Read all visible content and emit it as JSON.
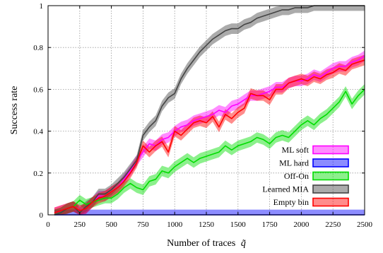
{
  "chart_data": {
    "type": "line",
    "xlabel": "Number of traces",
    "xlabel_symbol": "q̃",
    "ylabel": "Success rate",
    "xlim": [
      0,
      2500
    ],
    "ylim": [
      0,
      1
    ],
    "xticks": [
      "0",
      "250",
      "500",
      "750",
      "1000",
      "1250",
      "1500",
      "1750",
      "2000",
      "2250",
      "2500"
    ],
    "yticks": [
      "0",
      "0.2",
      "0.4",
      "0.6",
      "0.8",
      "1"
    ],
    "grid": true,
    "legend_position": "bottom-right",
    "series": [
      {
        "name": "ML soft",
        "color": "#ff00ff",
        "x": [
          50,
          100,
          150,
          200,
          250,
          300,
          350,
          400,
          450,
          500,
          550,
          600,
          650,
          700,
          750,
          800,
          850,
          900,
          950,
          1000,
          1050,
          1100,
          1150,
          1200,
          1250,
          1300,
          1350,
          1400,
          1450,
          1500,
          1550,
          1600,
          1650,
          1700,
          1750,
          1800,
          1850,
          1900,
          1950,
          2000,
          2050,
          2100,
          2150,
          2200,
          2250,
          2300,
          2350,
          2400,
          2450,
          2500
        ],
        "y": [
          0.01,
          0.02,
          0.03,
          0.04,
          0.02,
          0.03,
          0.06,
          0.09,
          0.09,
          0.11,
          0.13,
          0.17,
          0.21,
          0.26,
          0.3,
          0.34,
          0.33,
          0.36,
          0.37,
          0.4,
          0.42,
          0.43,
          0.45,
          0.46,
          0.47,
          0.48,
          0.5,
          0.49,
          0.52,
          0.53,
          0.55,
          0.57,
          0.57,
          0.58,
          0.59,
          0.61,
          0.61,
          0.63,
          0.64,
          0.64,
          0.65,
          0.67,
          0.66,
          0.68,
          0.7,
          0.71,
          0.71,
          0.73,
          0.74,
          0.76
        ]
      },
      {
        "name": "ML hard",
        "color": "#0000ff",
        "x": [
          50,
          100,
          150,
          200,
          250,
          300,
          350,
          400,
          450,
          500,
          550,
          600,
          650,
          700,
          750,
          800,
          850,
          900,
          950,
          1000,
          1050,
          1100,
          1150,
          1200,
          1250,
          1300,
          1350,
          1400,
          1450,
          1500,
          1550,
          1600,
          1650,
          1700,
          1750,
          1800,
          1850,
          1900,
          1950,
          2000,
          2050,
          2100,
          2150,
          2200,
          2250,
          2300,
          2350,
          2400,
          2450,
          2500
        ],
        "y": [
          0,
          0,
          0,
          0,
          0,
          0,
          0,
          0,
          0,
          0,
          0,
          0,
          0,
          0,
          0,
          0,
          0,
          0,
          0,
          0,
          0,
          0,
          0,
          0,
          0,
          0,
          0,
          0,
          0,
          0,
          0,
          0,
          0,
          0,
          0,
          0,
          0,
          0,
          0,
          0,
          0,
          0,
          0,
          0,
          0,
          0,
          0,
          0,
          0,
          0
        ]
      },
      {
        "name": "Off-On",
        "color": "#00dd00",
        "x": [
          50,
          100,
          150,
          200,
          250,
          300,
          350,
          400,
          450,
          500,
          550,
          600,
          650,
          700,
          750,
          800,
          850,
          900,
          950,
          1000,
          1050,
          1100,
          1150,
          1200,
          1250,
          1300,
          1350,
          1400,
          1450,
          1500,
          1550,
          1600,
          1650,
          1700,
          1750,
          1800,
          1850,
          1900,
          1950,
          2000,
          2050,
          2100,
          2150,
          2200,
          2250,
          2300,
          2350,
          2400,
          2450,
          2500
        ],
        "y": [
          0.0,
          0.01,
          0.03,
          0.04,
          0.07,
          0.05,
          0.06,
          0.07,
          0.08,
          0.08,
          0.1,
          0.13,
          0.15,
          0.13,
          0.12,
          0.16,
          0.17,
          0.21,
          0.2,
          0.23,
          0.25,
          0.27,
          0.25,
          0.27,
          0.28,
          0.29,
          0.3,
          0.33,
          0.31,
          0.33,
          0.34,
          0.35,
          0.37,
          0.36,
          0.34,
          0.37,
          0.38,
          0.37,
          0.4,
          0.43,
          0.45,
          0.43,
          0.46,
          0.48,
          0.51,
          0.54,
          0.59,
          0.53,
          0.57,
          0.6
        ]
      },
      {
        "name": "Learned MIA",
        "color": "#444444",
        "x": [
          50,
          100,
          150,
          200,
          250,
          300,
          350,
          400,
          450,
          500,
          550,
          600,
          650,
          700,
          750,
          800,
          850,
          900,
          950,
          1000,
          1050,
          1100,
          1150,
          1200,
          1250,
          1300,
          1350,
          1400,
          1450,
          1500,
          1550,
          1600,
          1650,
          1700,
          1750,
          1800,
          1850,
          1900,
          1950,
          2000,
          2050,
          2100,
          2150,
          2200,
          2250,
          2300,
          2350,
          2400,
          2450,
          2500
        ],
        "y": [
          0.0,
          0.01,
          0.03,
          0.04,
          0.01,
          0.04,
          0.06,
          0.1,
          0.1,
          0.12,
          0.15,
          0.18,
          0.22,
          0.26,
          0.38,
          0.42,
          0.45,
          0.52,
          0.56,
          0.58,
          0.65,
          0.7,
          0.74,
          0.78,
          0.81,
          0.84,
          0.86,
          0.88,
          0.89,
          0.89,
          0.91,
          0.92,
          0.94,
          0.95,
          0.96,
          0.97,
          0.98,
          0.98,
          0.99,
          0.99,
          0.99,
          1.0,
          1.0,
          1.0,
          1.0,
          1.0,
          1.0,
          1.0,
          1.0,
          1.0
        ]
      },
      {
        "name": "Empty bin",
        "color": "#ff0000",
        "x": [
          50,
          100,
          150,
          200,
          250,
          300,
          350,
          400,
          450,
          500,
          550,
          600,
          650,
          700,
          750,
          800,
          850,
          900,
          950,
          1000,
          1050,
          1100,
          1150,
          1200,
          1250,
          1300,
          1350,
          1400,
          1450,
          1500,
          1550,
          1600,
          1650,
          1700,
          1750,
          1800,
          1850,
          1900,
          1950,
          2000,
          2050,
          2100,
          2150,
          2200,
          2250,
          2300,
          2350,
          2400,
          2450,
          2500
        ],
        "y": [
          0.01,
          0.02,
          0.03,
          0.04,
          0.02,
          0.03,
          0.06,
          0.08,
          0.09,
          0.11,
          0.13,
          0.16,
          0.2,
          0.25,
          0.33,
          0.3,
          0.33,
          0.35,
          0.3,
          0.4,
          0.38,
          0.41,
          0.44,
          0.45,
          0.44,
          0.47,
          0.42,
          0.48,
          0.46,
          0.49,
          0.51,
          0.58,
          0.57,
          0.57,
          0.55,
          0.6,
          0.6,
          0.63,
          0.64,
          0.65,
          0.64,
          0.66,
          0.65,
          0.67,
          0.68,
          0.7,
          0.69,
          0.72,
          0.73,
          0.74
        ]
      }
    ]
  }
}
